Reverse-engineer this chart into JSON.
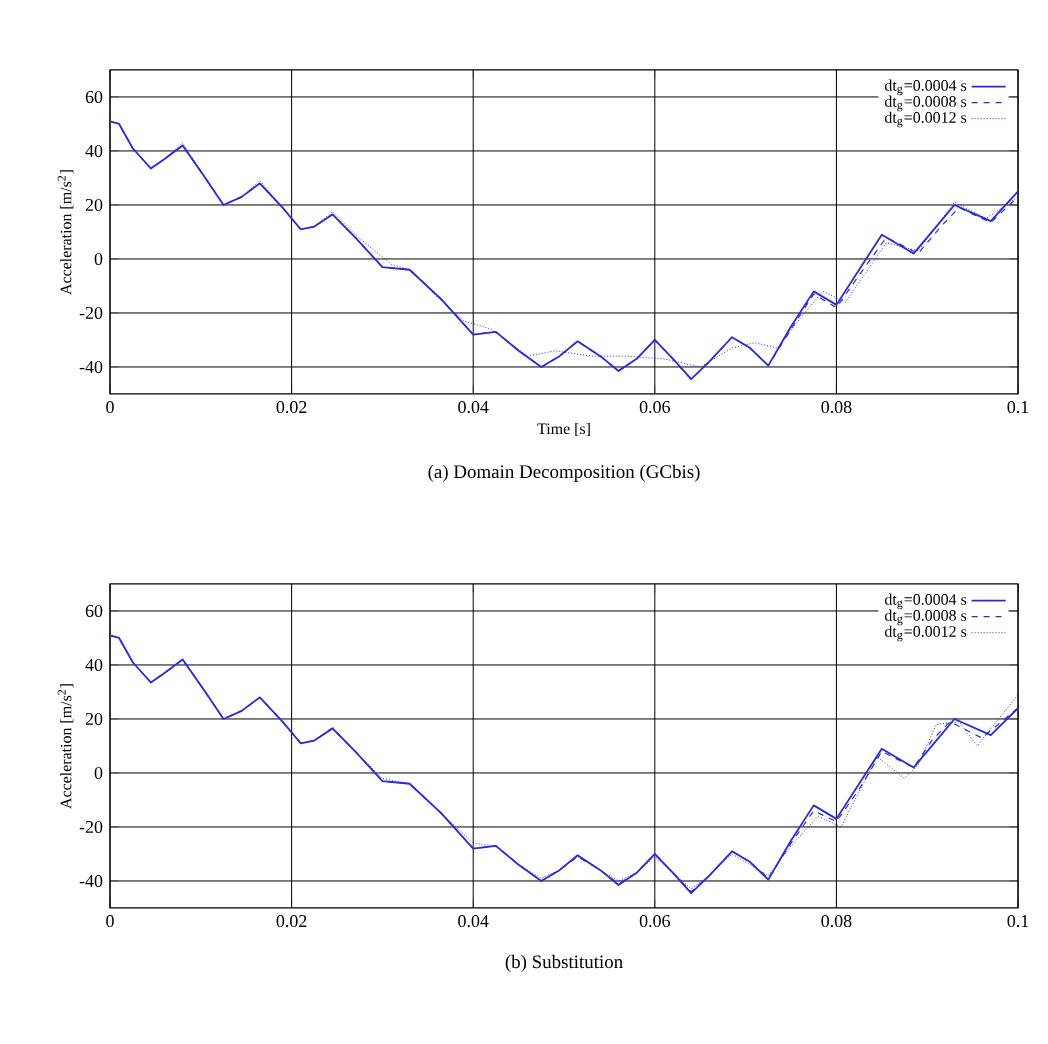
{
  "chart_data": [
    {
      "type": "line",
      "title": "(a)  Domain Decomposition (GCbis)",
      "xlabel": "Time [s]",
      "ylabel": "Acceleration [m/s$^{2}$]",
      "xlim": [
        0,
        0.1
      ],
      "xticks": [
        0,
        0.02,
        0.04,
        0.06,
        0.08,
        0.1
      ],
      "ylim": [
        -50,
        70
      ],
      "yticks": [
        -40,
        -20,
        0,
        20,
        40,
        60
      ],
      "grid": true,
      "legend": "top right",
      "series": [
        {
          "name": "dt$_{g}$=0.0004 s",
          "color": "#2b2bd6",
          "line_style": "solid",
          "x": [
            0,
            0.001,
            0.0025,
            0.0045,
            0.006,
            0.008,
            0.0105,
            0.0125,
            0.0145,
            0.0165,
            0.019,
            0.021,
            0.0225,
            0.0245,
            0.027,
            0.03,
            0.033,
            0.0365,
            0.04,
            0.0425,
            0.045,
            0.0475,
            0.0495,
            0.0515,
            0.054,
            0.056,
            0.058,
            0.06,
            0.062,
            0.064,
            0.066,
            0.0685,
            0.0705,
            0.0725,
            0.075,
            0.0775,
            0.08,
            0.0825,
            0.085,
            0.0885,
            0.091,
            0.093,
            0.097,
            0.1
          ],
          "values": [
            51,
            50,
            41,
            33.5,
            37,
            42,
            30,
            20,
            23,
            28,
            19,
            11,
            12,
            16.5,
            8,
            -3,
            -4,
            -15,
            -28,
            -27,
            -34,
            -40,
            -36,
            -30.5,
            -36,
            -41.5,
            -37,
            -30,
            -37,
            -44.5,
            -38,
            -29,
            -33,
            -39.5,
            -25,
            -12,
            -17,
            -4,
            9,
            2,
            12,
            20,
            14,
            25
          ]
        },
        {
          "name": "dt$_{g}$=0.0008 s",
          "color": "#2b2bd6",
          "line_style": "dashed",
          "x": [
            0,
            0.001,
            0.0025,
            0.0045,
            0.006,
            0.008,
            0.0105,
            0.0125,
            0.0145,
            0.0165,
            0.019,
            0.021,
            0.0225,
            0.0245,
            0.027,
            0.03,
            0.033,
            0.0365,
            0.04,
            0.0425,
            0.045,
            0.0475,
            0.0495,
            0.0515,
            0.054,
            0.056,
            0.058,
            0.06,
            0.062,
            0.064,
            0.066,
            0.0685,
            0.0705,
            0.0725,
            0.075,
            0.0775,
            0.08,
            0.0825,
            0.0855,
            0.089,
            0.0915,
            0.0935,
            0.097,
            0.1
          ],
          "values": [
            51,
            50,
            41,
            33.5,
            37,
            42,
            30,
            20,
            23,
            28,
            19,
            11,
            12,
            16.5,
            8,
            -3,
            -4,
            -15,
            -28,
            -27,
            -34,
            -40,
            -36,
            -30.5,
            -36,
            -41.5,
            -37,
            -30,
            -37,
            -44.5,
            -38,
            -29,
            -33,
            -39.5,
            -26,
            -13,
            -18,
            -6,
            8,
            2,
            12,
            19,
            13.5,
            23
          ]
        },
        {
          "name": "dt$_{g}$=0.0012 s",
          "color": "#2b2bd6",
          "line_style": "dotted",
          "x": [
            0,
            0.001,
            0.0025,
            0.0045,
            0.006,
            0.008,
            0.0105,
            0.0125,
            0.0145,
            0.0165,
            0.019,
            0.021,
            0.0225,
            0.0245,
            0.027,
            0.031,
            0.033,
            0.036,
            0.039,
            0.042,
            0.046,
            0.049,
            0.053,
            0.057,
            0.061,
            0.065,
            0.0685,
            0.071,
            0.0735,
            0.076,
            0.0785,
            0.081,
            0.0855,
            0.089,
            0.093,
            0.0965,
            0.1
          ],
          "values": [
            51,
            50,
            41,
            33.5,
            37,
            43,
            30,
            20,
            23,
            29,
            19,
            11,
            12,
            17.5,
            9,
            -2,
            -4,
            -14,
            -23,
            -26,
            -36,
            -34,
            -36,
            -36,
            -37,
            -40,
            -33,
            -31,
            -33,
            -22,
            -12,
            -16,
            6,
            3,
            21,
            15,
            23
          ]
        }
      ]
    },
    {
      "type": "line",
      "title": "(b)  Substitution",
      "ylabel": "Acceleration [m/s$^{2}$]",
      "xlim": [
        0,
        0.1
      ],
      "xticks": [
        0,
        0.02,
        0.04,
        0.06,
        0.08,
        0.1
      ],
      "ylim": [
        -50,
        70
      ],
      "yticks": [
        -40,
        -20,
        0,
        20,
        40,
        60
      ],
      "grid": true,
      "legend": "top right",
      "series": [
        {
          "name": "dt$_{g}$=0.0004 s",
          "color": "#2b2bd6",
          "line_style": "solid",
          "x": [
            0,
            0.001,
            0.0025,
            0.0045,
            0.006,
            0.008,
            0.0105,
            0.0125,
            0.0145,
            0.0165,
            0.019,
            0.021,
            0.0225,
            0.0245,
            0.027,
            0.03,
            0.033,
            0.0365,
            0.04,
            0.0425,
            0.045,
            0.0475,
            0.0495,
            0.0515,
            0.054,
            0.056,
            0.058,
            0.06,
            0.062,
            0.064,
            0.066,
            0.0685,
            0.0705,
            0.0725,
            0.075,
            0.0775,
            0.08,
            0.0825,
            0.085,
            0.0885,
            0.091,
            0.093,
            0.097,
            0.1
          ],
          "values": [
            51,
            50,
            41,
            33.5,
            37,
            42,
            30,
            20,
            23,
            28,
            19,
            11,
            12,
            16.5,
            8,
            -3,
            -4,
            -15,
            -28,
            -27,
            -34,
            -40,
            -36,
            -30.5,
            -36,
            -41.5,
            -37,
            -30,
            -37,
            -44.5,
            -38,
            -29,
            -33,
            -39.5,
            -25,
            -12,
            -17,
            -4,
            9,
            2,
            12,
            20,
            14,
            24
          ]
        },
        {
          "name": "dt$_{g}$=0.0008 s",
          "color": "#2b2bd6",
          "line_style": "dashed",
          "x": [
            0,
            0.001,
            0.0025,
            0.0045,
            0.006,
            0.008,
            0.0105,
            0.0125,
            0.0145,
            0.0165,
            0.019,
            0.021,
            0.0225,
            0.0245,
            0.027,
            0.03,
            0.033,
            0.0365,
            0.04,
            0.0425,
            0.045,
            0.0475,
            0.0495,
            0.0515,
            0.054,
            0.056,
            0.058,
            0.06,
            0.062,
            0.064,
            0.066,
            0.0685,
            0.0705,
            0.0725,
            0.075,
            0.0775,
            0.08,
            0.0825,
            0.085,
            0.0885,
            0.0905,
            0.0925,
            0.096,
            0.1
          ],
          "values": [
            51,
            50,
            41,
            33.5,
            37,
            42,
            30,
            20,
            23,
            28,
            19,
            11,
            12,
            16.5,
            8,
            -3,
            -4,
            -15,
            -28,
            -27,
            -34,
            -40,
            -36,
            -31,
            -36,
            -41,
            -37,
            -30,
            -37,
            -44,
            -38,
            -29,
            -33,
            -39,
            -26,
            -14,
            -18,
            -6,
            8,
            2,
            12,
            19,
            13,
            24
          ]
        },
        {
          "name": "dt$_{g}$=0.0012 s",
          "color": "#2b2bd6",
          "line_style": "dotted",
          "x": [
            0,
            0.001,
            0.0025,
            0.0045,
            0.006,
            0.008,
            0.0105,
            0.0125,
            0.0145,
            0.0165,
            0.019,
            0.021,
            0.0225,
            0.0245,
            0.027,
            0.03,
            0.033,
            0.0365,
            0.04,
            0.0425,
            0.045,
            0.0475,
            0.0495,
            0.0515,
            0.054,
            0.056,
            0.058,
            0.06,
            0.062,
            0.064,
            0.066,
            0.0685,
            0.0705,
            0.0725,
            0.075,
            0.078,
            0.0805,
            0.0825,
            0.0845,
            0.0875,
            0.089,
            0.091,
            0.0935,
            0.0955,
            0.1
          ],
          "values": [
            51,
            50,
            41,
            33.5,
            37,
            42,
            30,
            20,
            23,
            28,
            19,
            11,
            12,
            17,
            8,
            -2,
            -4,
            -15,
            -26,
            -27,
            -34,
            -39,
            -36,
            -31,
            -36,
            -40,
            -37,
            -31,
            -37,
            -43,
            -38,
            -30,
            -34,
            -38,
            -27,
            -16,
            -20,
            -7,
            6,
            -2,
            3,
            18,
            19,
            10,
            29
          ]
        }
      ]
    }
  ]
}
